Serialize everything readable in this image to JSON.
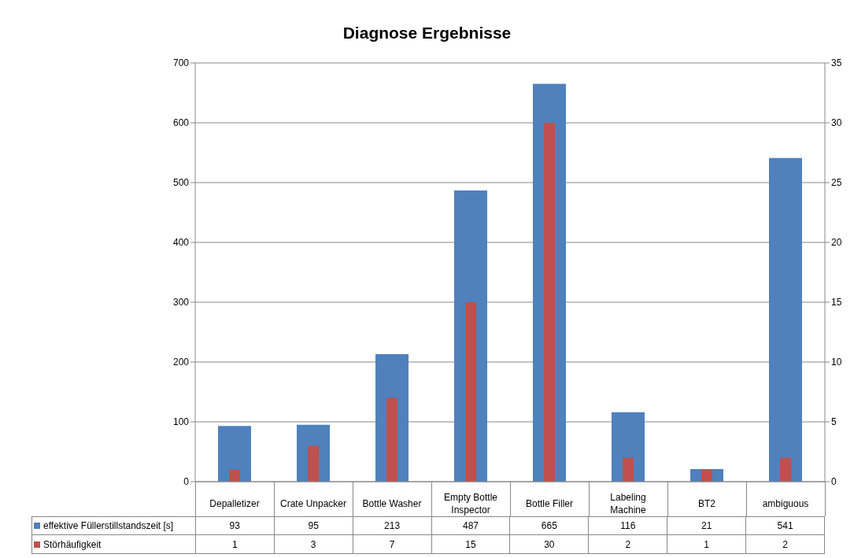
{
  "chart_data": {
    "type": "bar",
    "title": "Diagnose Ergebnisse",
    "categories": [
      "Depalletizer",
      "Crate Unpacker",
      "Bottle Washer",
      "Empty Bottle Inspector",
      "Bottle Filler",
      "Labeling Machine",
      "BT2",
      "ambiguous"
    ],
    "series": [
      {
        "name": "effektive Füllerstillstandszeit [s]",
        "color": "#4f81bd",
        "values": [
          93,
          95,
          213,
          487,
          665,
          116,
          21,
          541
        ]
      },
      {
        "name": "Störhäufigkeit",
        "color": "#c0504d",
        "axis": "y2",
        "values": [
          1,
          3,
          7,
          15,
          30,
          2,
          1,
          2
        ]
      }
    ],
    "ylim": [
      0,
      700
    ],
    "yticks": [
      0,
      100,
      200,
      300,
      400,
      500,
      600,
      700
    ],
    "y2lim": [
      0,
      35
    ],
    "y2ticks": [
      0,
      5,
      10,
      15,
      20,
      25,
      30,
      35
    ],
    "grid": "y",
    "legend": "bottom",
    "data_labels": true
  }
}
